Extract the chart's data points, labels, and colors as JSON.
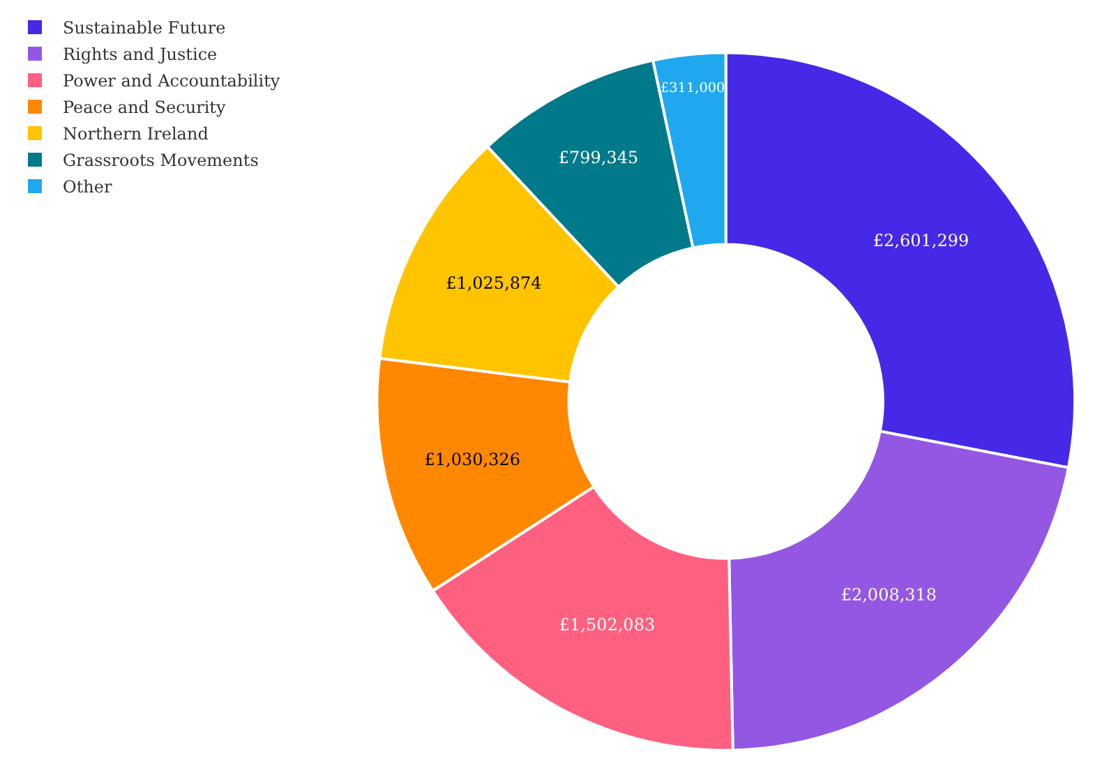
{
  "chart_data": {
    "type": "donut",
    "categories": [
      "Sustainable Future",
      "Rights and Justice",
      "Power and Accountability",
      "Peace and Security",
      "Northern Ireland",
      "Grassroots Movements",
      "Other"
    ],
    "values": [
      2601299,
      2008318,
      1502083,
      1030326,
      1025874,
      799345,
      311000
    ],
    "value_labels": [
      "£2,601,299",
      "£2,008,318",
      "£1,502,083",
      "£1,030,326",
      "£1,025,874",
      "£799,345",
      "£311,000"
    ],
    "colors": [
      "#4529e6",
      "#9457e3",
      "#ff6080",
      "#ff8800",
      "#ffc400",
      "#007a8a",
      "#1fa8ee"
    ],
    "legend": "top left"
  }
}
